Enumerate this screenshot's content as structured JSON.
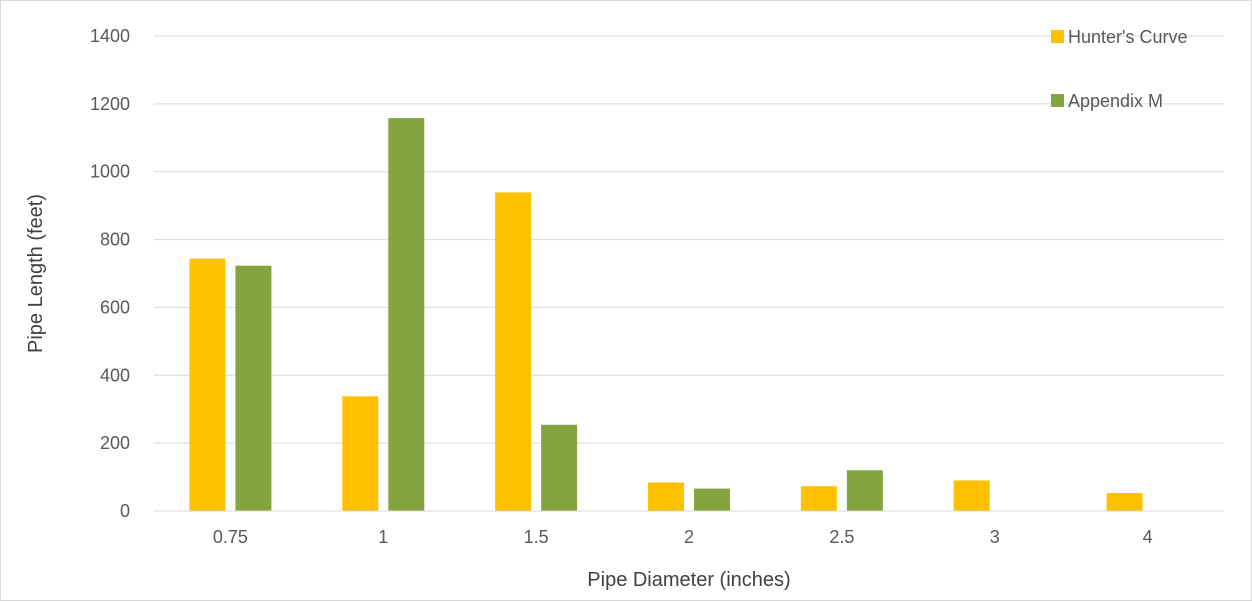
{
  "chart_data": {
    "type": "bar",
    "categories": [
      "0.75",
      "1",
      "1.5",
      "2",
      "2.5",
      "3",
      "4"
    ],
    "series": [
      {
        "name": "Hunter's Curve",
        "color": "#FFC000",
        "values": [
          744,
          338,
          939,
          84,
          73,
          90,
          53
        ]
      },
      {
        "name": "Appendix M",
        "color": "#84A43F",
        "values": [
          723,
          1158,
          254,
          66,
          120,
          0,
          0
        ]
      }
    ],
    "title": "",
    "xlabel": "Pipe Diameter (inches)",
    "ylabel": "Pipe Length (feet)",
    "ylim": [
      0,
      1400
    ],
    "yticks": [
      "0",
      "200",
      "400",
      "600",
      "800",
      "1000",
      "1200",
      "1400"
    ],
    "grid": "horizontal",
    "legend_position": "top-right"
  }
}
